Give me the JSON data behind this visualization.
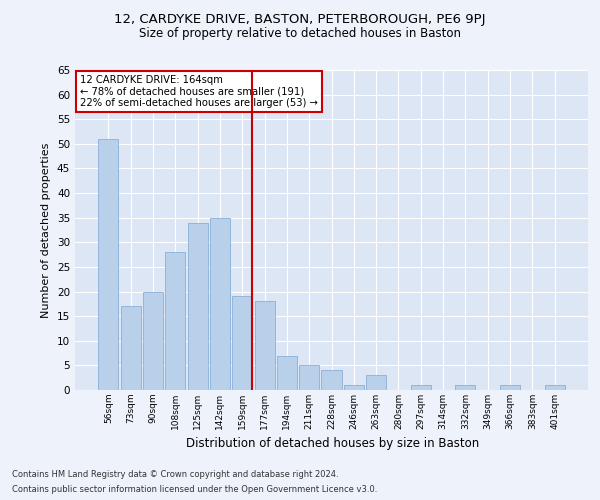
{
  "title_line1": "12, CARDYKE DRIVE, BASTON, PETERBOROUGH, PE6 9PJ",
  "title_line2": "Size of property relative to detached houses in Baston",
  "xlabel": "Distribution of detached houses by size in Baston",
  "ylabel": "Number of detached properties",
  "categories": [
    "56sqm",
    "73sqm",
    "90sqm",
    "108sqm",
    "125sqm",
    "142sqm",
    "159sqm",
    "177sqm",
    "194sqm",
    "211sqm",
    "228sqm",
    "246sqm",
    "263sqm",
    "280sqm",
    "297sqm",
    "314sqm",
    "332sqm",
    "349sqm",
    "366sqm",
    "383sqm",
    "401sqm"
  ],
  "values": [
    51,
    17,
    20,
    28,
    34,
    35,
    19,
    18,
    7,
    5,
    4,
    1,
    3,
    0,
    1,
    0,
    1,
    0,
    1,
    0,
    1
  ],
  "bar_color": "#b8d0ea",
  "bar_edge_color": "#8ab0d8",
  "bg_color": "#dce6f5",
  "grid_color": "#ffffff",
  "fig_color": "#edf2fb",
  "vline_x_idx": 6,
  "vline_color": "#cc0000",
  "annotation_title": "12 CARDYKE DRIVE: 164sqm",
  "annotation_line1": "← 78% of detached houses are smaller (191)",
  "annotation_line2": "22% of semi-detached houses are larger (53) →",
  "annotation_box_color": "#ffffff",
  "annotation_box_edge": "#cc0000",
  "ylim": [
    0,
    65
  ],
  "yticks": [
    0,
    5,
    10,
    15,
    20,
    25,
    30,
    35,
    40,
    45,
    50,
    55,
    60,
    65
  ],
  "footnote1": "Contains HM Land Registry data © Crown copyright and database right 2024.",
  "footnote2": "Contains public sector information licensed under the Open Government Licence v3.0."
}
